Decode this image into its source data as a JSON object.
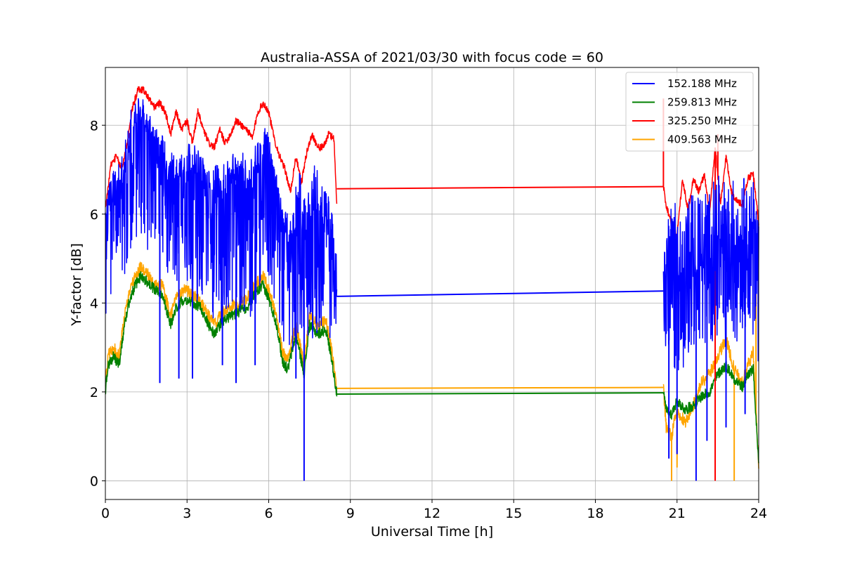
{
  "chart_data": {
    "type": "line",
    "title": "Australia-ASSA of 2021/03/30 with focus code = 60",
    "xlabel": "Universal Time [h]",
    "ylabel": "Y-factor [dB]",
    "xlim": [
      0,
      24
    ],
    "ylim": [
      -0.42,
      9.3
    ],
    "x_ticks": [
      0,
      3,
      6,
      9,
      12,
      15,
      18,
      21,
      24
    ],
    "y_ticks": [
      0,
      2,
      4,
      6,
      8
    ],
    "grid": true,
    "legend_position": "top-right",
    "series": [
      {
        "name": "152.188 MHz",
        "color": "#0000ff",
        "x": [
          0.0,
          0.3,
          0.6,
          0.9,
          1.2,
          1.4,
          1.7,
          2.0,
          2.3,
          2.6,
          2.9,
          3.2,
          3.5,
          3.8,
          4.1,
          4.4,
          4.7,
          5.0,
          5.3,
          5.6,
          5.9,
          6.2,
          6.5,
          6.8,
          7.1,
          7.4,
          7.7,
          8.0,
          8.3,
          8.5,
          20.5,
          20.7,
          21.0,
          21.3,
          21.6,
          21.9,
          22.2,
          22.5,
          22.8,
          23.1,
          23.4,
          23.7,
          24.0
        ],
        "y": [
          5.8,
          6.2,
          6.6,
          7.2,
          7.8,
          8.0,
          7.5,
          7.3,
          6.8,
          6.6,
          6.9,
          6.8,
          6.7,
          6.3,
          6.3,
          6.3,
          6.7,
          6.6,
          6.5,
          6.9,
          7.4,
          6.8,
          5.6,
          5.0,
          6.0,
          5.3,
          5.7,
          5.6,
          5.2,
          4.2,
          4.25,
          5.0,
          4.5,
          4.4,
          4.6,
          4.7,
          4.8,
          5.2,
          4.9,
          5.0,
          5.2,
          5.6,
          5.0
        ],
        "upper": [
          6.4,
          7.0,
          7.3,
          8.3,
          8.6,
          8.6,
          8.1,
          7.9,
          7.5,
          7.3,
          7.7,
          7.6,
          7.4,
          7.0,
          7.2,
          7.1,
          7.4,
          7.4,
          7.3,
          7.8,
          8.0,
          7.2,
          6.2,
          5.9,
          7.1,
          6.3,
          7.2,
          6.6,
          6.4,
          5.0,
          5.2,
          6.4,
          6.2,
          6.2,
          6.5,
          6.5,
          6.6,
          6.9,
          6.7,
          6.8,
          6.8,
          7.1,
          6.0
        ],
        "lower": [
          3.2,
          4.6,
          4.4,
          5.0,
          5.6,
          5.3,
          4.8,
          4.9,
          4.5,
          4.1,
          4.2,
          4.1,
          3.8,
          3.6,
          3.5,
          3.4,
          3.6,
          3.7,
          3.6,
          4.1,
          4.4,
          4.0,
          3.0,
          2.6,
          3.4,
          2.8,
          3.3,
          3.4,
          3.1,
          3.5,
          3.4,
          2.3,
          2.5,
          2.4,
          2.8,
          2.9,
          3.0,
          3.3,
          3.0,
          3.1,
          3.2,
          3.6,
          1.5
        ],
        "spikes": [
          [
            2.0,
            2.2
          ],
          [
            2.7,
            2.3
          ],
          [
            3.2,
            2.3
          ],
          [
            4.3,
            2.6
          ],
          [
            4.8,
            2.2
          ],
          [
            5.5,
            2.6
          ],
          [
            7.0,
            2.3
          ],
          [
            7.3,
            0.0
          ],
          [
            20.7,
            0.5
          ],
          [
            21.0,
            0.6
          ],
          [
            21.7,
            0.0
          ],
          [
            22.1,
            0.9
          ],
          [
            22.8,
            1.2
          ],
          [
            23.5,
            1.5
          ]
        ],
        "noise": 0.45,
        "level_x": [
          8.5,
          20.5
        ],
        "level_y": [
          4.15,
          4.27
        ]
      },
      {
        "name": "259.813 MHz",
        "color": "#008000",
        "x": [
          0.0,
          0.1,
          0.3,
          0.5,
          0.7,
          0.9,
          1.1,
          1.3,
          1.5,
          1.8,
          2.1,
          2.4,
          2.6,
          2.9,
          3.2,
          3.5,
          3.8,
          4.0,
          4.3,
          4.6,
          4.9,
          5.2,
          5.5,
          5.8,
          6.0,
          6.3,
          6.5,
          6.7,
          7.0,
          7.3,
          7.5,
          7.8,
          8.1,
          8.3,
          8.5,
          20.5,
          20.6,
          20.8,
          21.0,
          21.3,
          21.6,
          21.9,
          22.2,
          22.5,
          22.8,
          23.1,
          23.4,
          23.6,
          23.8,
          24.0
        ],
        "y": [
          2.0,
          2.6,
          2.8,
          2.6,
          3.5,
          4.1,
          4.4,
          4.6,
          4.5,
          4.3,
          4.2,
          3.5,
          3.9,
          4.1,
          4.0,
          3.9,
          3.5,
          3.3,
          3.6,
          3.7,
          3.8,
          3.9,
          4.2,
          4.4,
          4.1,
          3.5,
          2.7,
          2.5,
          3.3,
          2.4,
          3.5,
          3.3,
          3.4,
          2.8,
          1.95,
          1.98,
          1.6,
          1.5,
          1.8,
          1.6,
          1.7,
          1.9,
          2.0,
          2.4,
          2.6,
          2.3,
          2.1,
          2.4,
          2.5,
          0.3
        ],
        "noise": 0.12,
        "level_x": [
          8.5,
          20.5
        ],
        "level_y": [
          1.95,
          1.98
        ]
      },
      {
        "name": "325.250 MHz",
        "color": "#ff0000",
        "x": [
          0.0,
          0.2,
          0.4,
          0.6,
          0.8,
          1.0,
          1.2,
          1.4,
          1.6,
          1.8,
          2.0,
          2.2,
          2.4,
          2.6,
          2.8,
          3.0,
          3.2,
          3.4,
          3.6,
          3.8,
          4.0,
          4.2,
          4.4,
          4.6,
          4.8,
          5.0,
          5.2,
          5.4,
          5.6,
          5.8,
          6.0,
          6.2,
          6.4,
          6.6,
          6.8,
          7.0,
          7.2,
          7.4,
          7.6,
          7.8,
          8.0,
          8.2,
          8.4,
          8.5,
          20.5,
          20.6,
          20.8,
          21.0,
          21.2,
          21.4,
          21.6,
          21.8,
          22.0,
          22.2,
          22.4,
          22.6,
          22.8,
          23.0,
          23.2,
          23.4,
          23.6,
          23.8,
          24.0
        ],
        "y": [
          6.1,
          7.1,
          7.3,
          7.0,
          7.6,
          8.4,
          8.8,
          8.8,
          8.6,
          8.4,
          8.5,
          8.3,
          7.8,
          8.3,
          7.9,
          8.1,
          7.6,
          8.3,
          7.9,
          7.6,
          7.5,
          7.9,
          7.6,
          7.8,
          8.1,
          8.0,
          7.9,
          7.7,
          8.3,
          8.5,
          8.3,
          7.7,
          7.3,
          7.0,
          6.5,
          7.3,
          6.7,
          7.4,
          7.8,
          7.5,
          7.5,
          7.8,
          7.7,
          6.2,
          6.62,
          6.2,
          5.8,
          5.5,
          6.8,
          6.1,
          6.8,
          6.5,
          6.9,
          6.0,
          7.5,
          6.2,
          7.3,
          6.5,
          6.3,
          6.2,
          6.8,
          6.9,
          5.8
        ],
        "spikes": [
          [
            20.5,
            8.6
          ],
          [
            22.4,
            0.0
          ],
          [
            22.5,
            7.8
          ]
        ],
        "noise": 0.08,
        "level_x": [
          8.5,
          20.5
        ],
        "level_y": [
          6.57,
          6.62
        ]
      },
      {
        "name": "409.563 MHz",
        "color": "#ffa500",
        "x": [
          0.0,
          0.1,
          0.3,
          0.5,
          0.7,
          0.9,
          1.1,
          1.3,
          1.5,
          1.8,
          2.1,
          2.4,
          2.6,
          2.9,
          3.2,
          3.5,
          3.8,
          4.0,
          4.3,
          4.6,
          4.9,
          5.2,
          5.5,
          5.8,
          6.0,
          6.3,
          6.5,
          6.7,
          7.0,
          7.3,
          7.5,
          7.8,
          8.1,
          8.3,
          8.5,
          20.5,
          20.6,
          20.8,
          21.0,
          21.3,
          21.6,
          21.9,
          22.2,
          22.5,
          22.8,
          23.1,
          23.4,
          23.6,
          23.8,
          24.0
        ],
        "y": [
          2.1,
          2.8,
          3.0,
          2.8,
          3.7,
          4.3,
          4.6,
          4.8,
          4.7,
          4.4,
          4.4,
          3.7,
          4.1,
          4.3,
          4.2,
          4.0,
          3.7,
          3.5,
          3.8,
          3.9,
          4.0,
          4.1,
          4.4,
          4.6,
          4.3,
          3.7,
          2.9,
          2.7,
          3.5,
          2.6,
          3.7,
          3.5,
          3.6,
          3.0,
          2.08,
          2.1,
          1.2,
          1.0,
          1.6,
          1.3,
          1.7,
          2.2,
          2.4,
          2.8,
          3.2,
          2.5,
          2.2,
          2.6,
          2.9,
          0.35
        ],
        "spikes": [
          [
            20.8,
            0.0
          ],
          [
            21.0,
            0.3
          ],
          [
            23.1,
            0.0
          ],
          [
            23.9,
            4.6
          ]
        ],
        "noise": 0.14,
        "level_x": [
          8.5,
          20.5
        ],
        "level_y": [
          2.08,
          2.1
        ]
      }
    ]
  }
}
